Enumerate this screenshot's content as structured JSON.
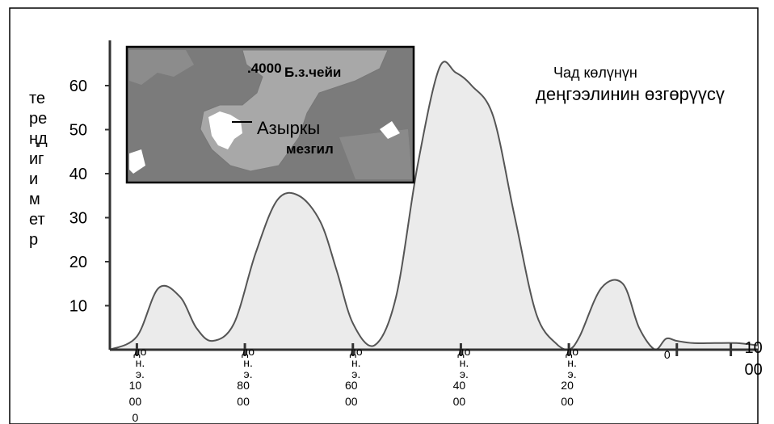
{
  "chart_data": {
    "type": "area",
    "title_lines": [
      "Чад көлүнүн",
      "деңгээлинин өзгөрүүсү"
    ],
    "ylabel_lines": [
      "те",
      "ре",
      "ңд",
      "иг",
      "и",
      "м",
      "ет",
      "р"
    ],
    "ylim": [
      0,
      65
    ],
    "yticks": [
      10,
      20,
      30,
      40,
      50,
      60
    ],
    "xlim": [
      -10500,
      1500
    ],
    "x": [
      -10500,
      -10000,
      -9600,
      -9200,
      -8900,
      -8600,
      -8200,
      -7800,
      -7400,
      -7000,
      -6600,
      -6300,
      -6000,
      -5600,
      -5200,
      -4800,
      -4400,
      -4100,
      -3800,
      -3400,
      -3000,
      -2600,
      -2200,
      -2000,
      -1800,
      -1400,
      -1000,
      -700,
      -400,
      -200,
      0,
      300,
      700,
      1100,
      1500
    ],
    "y": [
      0,
      3,
      14,
      12,
      5,
      2,
      6,
      22,
      34,
      35,
      29,
      18,
      6,
      1,
      12,
      42,
      64,
      63,
      60,
      53,
      30,
      8,
      1,
      0,
      3,
      14,
      15,
      5,
      0,
      2.5,
      2,
      1.5,
      1.5,
      1.5,
      1
    ],
    "x_ticks": [
      {
        "value": -10000,
        "lines": [
          "до",
          "н.",
          "э.",
          "10",
          "00",
          "0"
        ]
      },
      {
        "value": -8000,
        "lines": [
          "до",
          "н.",
          "э.",
          "80",
          "00"
        ]
      },
      {
        "value": -6000,
        "lines": [
          "до",
          "н.",
          "э.",
          "60",
          "00"
        ]
      },
      {
        "value": -4000,
        "lines": [
          "до",
          "н.",
          "э.",
          "40",
          "00"
        ]
      },
      {
        "value": -2000,
        "lines": [
          "до",
          "н.",
          "э.",
          "20",
          "00"
        ]
      },
      {
        "value": 0,
        "lines": [
          "0"
        ]
      },
      {
        "value": 1000,
        "lines": [
          "10",
          "00"
        ]
      }
    ],
    "grid": false,
    "legend": "none"
  },
  "inset_map": {
    "label_era": ".4000",
    "label_era_suffix": "Б.з.чейи",
    "label_now": "Азыркы",
    "label_now_2": "мезгил",
    "colors": {
      "land": "#7b7b7b",
      "ancient_lake": "#a8a8a8",
      "present_lake": "#ffffff"
    }
  },
  "colors": {
    "area_fill": "#ebebeb",
    "line": "#555555",
    "axis": "#333333"
  }
}
